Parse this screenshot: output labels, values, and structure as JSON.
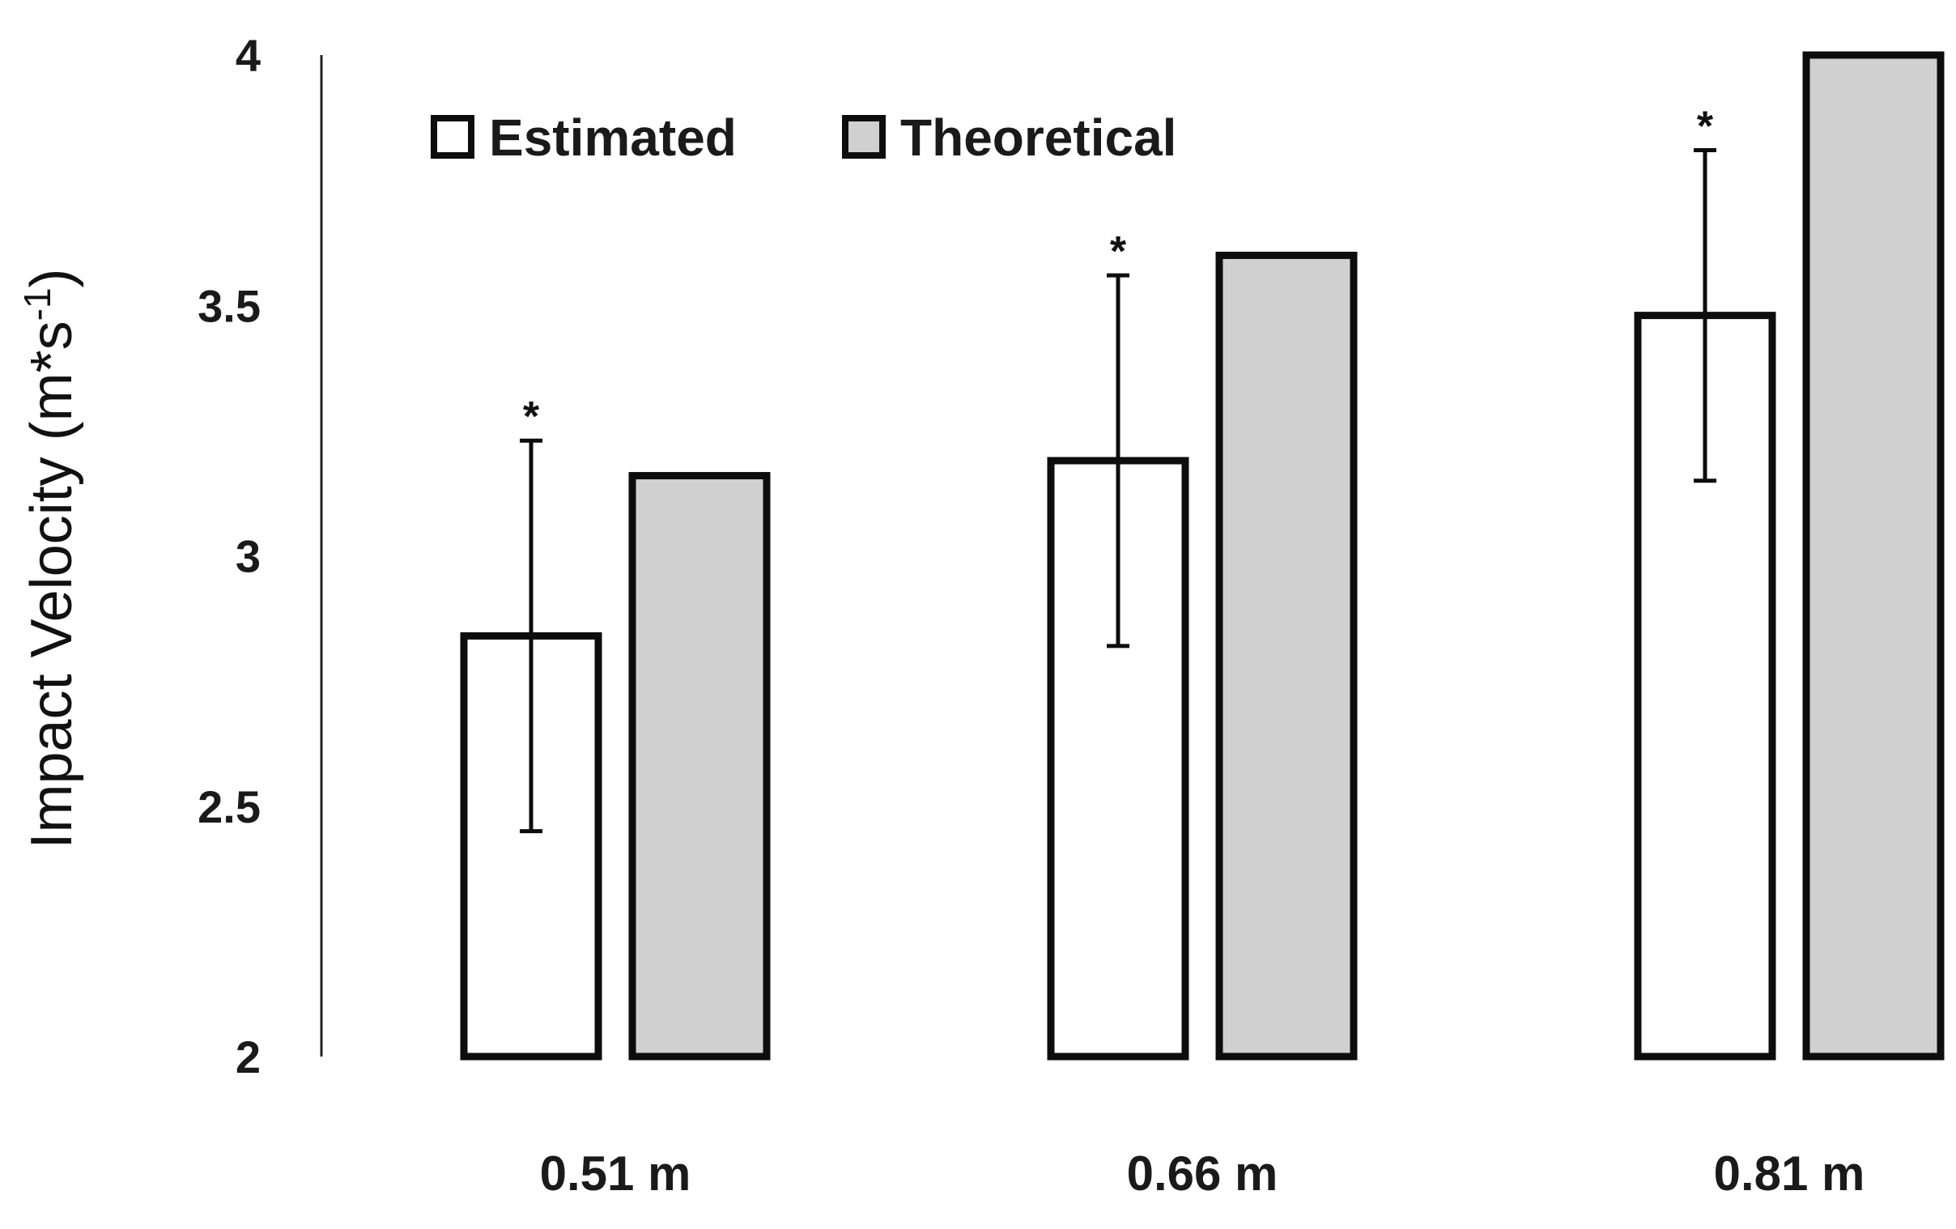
{
  "chart_data": {
    "type": "bar",
    "title": "",
    "xlabel": "",
    "ylabel": "Impact Velocity (m*s",
    "ylabel_superscript": "-1",
    "ylabel_close": ")",
    "ylim": [
      2,
      4
    ],
    "yticks": [
      "2",
      "2.5",
      "3",
      "3.5",
      "4"
    ],
    "grid": false,
    "legend_position": "top-left",
    "categories": [
      "0.51 m",
      "0.66 m",
      "0.81 m"
    ],
    "series": [
      {
        "name": "Estimated",
        "color": "#ffffff",
        "values": [
          2.84,
          3.19,
          3.48
        ],
        "error": [
          0.39,
          0.37,
          0.33
        ],
        "significance": [
          "*",
          "*",
          "*"
        ]
      },
      {
        "name": "Theoretical",
        "color": "#d0d0d0",
        "values": [
          3.16,
          3.6,
          4.0
        ]
      }
    ],
    "colors": {
      "stroke": "#0d0d0d",
      "axis": "#222222"
    }
  }
}
